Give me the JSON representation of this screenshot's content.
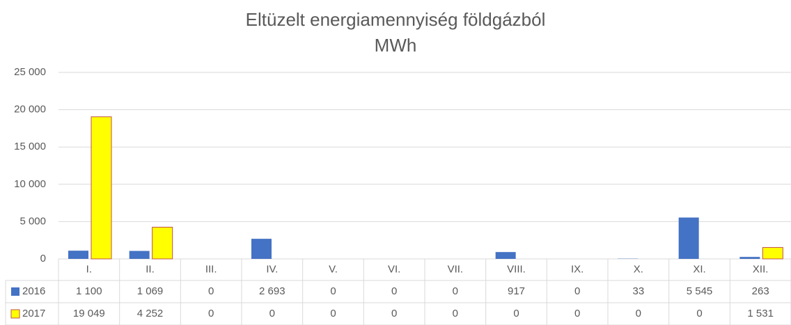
{
  "chart_data": {
    "type": "bar",
    "title": "Eltüzelt energiamennyiség földgázból",
    "subtitle": "MWh",
    "categories": [
      "I.",
      "II.",
      "III.",
      "IV.",
      "V.",
      "VI.",
      "VII.",
      "VIII.",
      "IX.",
      "X.",
      "XI.",
      "XII."
    ],
    "series": [
      {
        "name": "2016",
        "color": "#4472c4",
        "values": [
          1100,
          1069,
          0,
          2693,
          0,
          0,
          0,
          917,
          0,
          33,
          5545,
          263
        ],
        "value_labels": [
          "1 100",
          "1 069",
          "0",
          "2 693",
          "0",
          "0",
          "0",
          "917",
          "0",
          "33",
          "5 545",
          "263"
        ]
      },
      {
        "name": "2017",
        "color": "#ffff00",
        "border_color": "#c0504d",
        "values": [
          19049,
          4252,
          0,
          0,
          0,
          0,
          0,
          0,
          0,
          0,
          0,
          1531
        ],
        "value_labels": [
          "19 049",
          "4 252",
          "0",
          "0",
          "0",
          "0",
          "0",
          "0",
          "0",
          "0",
          "0",
          "1 531"
        ]
      }
    ],
    "ylim": [
      0,
      25000
    ],
    "yticks": [
      0,
      {
        "value": 5000,
        "label": "5 000"
      },
      {
        "value": 10000,
        "label": "10 000"
      },
      {
        "value": 15000,
        "label": "15 000"
      },
      {
        "value": 20000,
        "label": "20 000"
      },
      {
        "value": 25000,
        "label": "25 000"
      }
    ],
    "grid": true
  }
}
